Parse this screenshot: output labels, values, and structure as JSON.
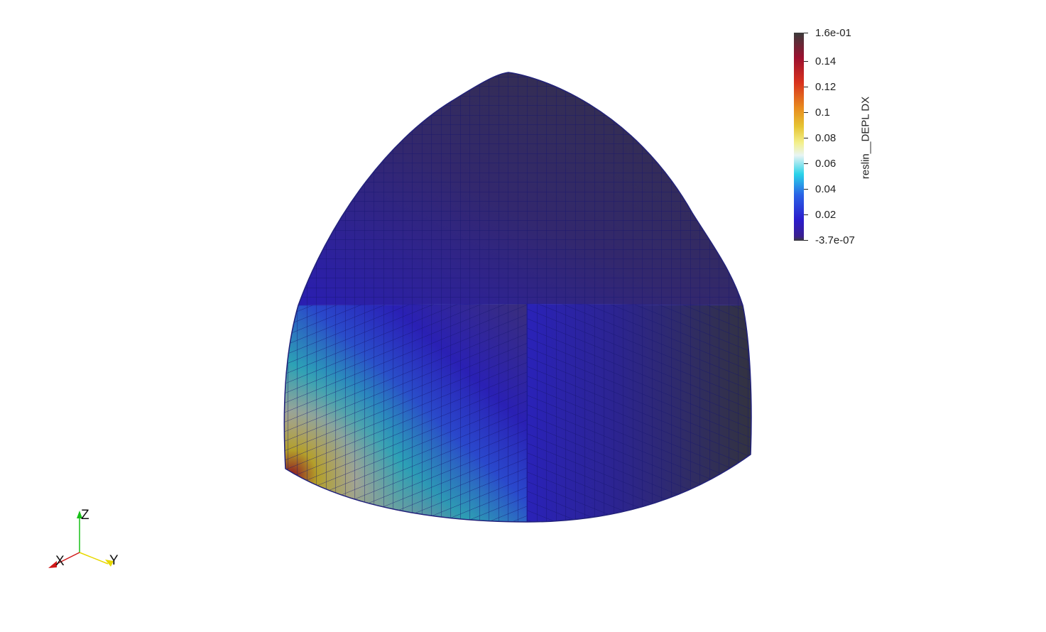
{
  "colorbar": {
    "title": "reslin__DEPL DX",
    "max_label": "1.6e-01",
    "min_label": "-3.7e-07",
    "ticks": [
      {
        "value": 0.14,
        "label": "0.14"
      },
      {
        "value": 0.12,
        "label": "0.12"
      },
      {
        "value": 0.1,
        "label": "0.1"
      },
      {
        "value": 0.08,
        "label": "0.08"
      },
      {
        "value": 0.06,
        "label": "0.06"
      },
      {
        "value": 0.04,
        "label": "0.04"
      },
      {
        "value": 0.02,
        "label": "0.02"
      }
    ],
    "range": [
      -3.7e-07,
      0.16
    ],
    "colormap": "rainbow-uniform-with-dark-ends"
  },
  "orientation_axes": {
    "x_label": "X",
    "y_label": "Y",
    "z_label": "Z",
    "x_color": "#d01818",
    "y_color": "#e8d800",
    "z_color": "#18c018"
  },
  "scene": {
    "object": "spherical-octant-mesh",
    "background": "#ffffff",
    "mesh_edge_color": "#1a1a8c"
  }
}
